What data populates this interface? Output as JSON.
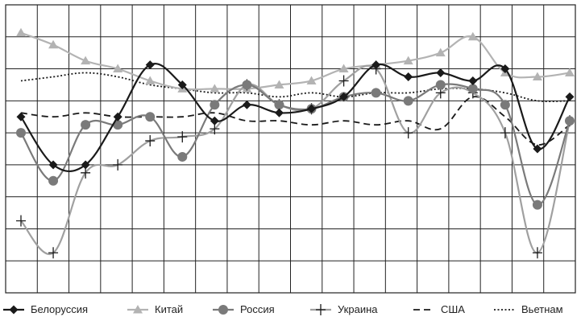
{
  "chart_data": {
    "type": "line",
    "title": "",
    "xlabel": "",
    "ylabel": "",
    "grid": true,
    "legend_position": "bottom",
    "x": [
      0,
      1,
      2,
      3,
      4,
      5,
      6,
      7,
      8,
      9,
      10,
      11,
      12,
      13,
      14,
      15,
      16,
      17
    ],
    "series": [
      {
        "name": "Белоруссия",
        "marker": "diamond",
        "line": "solid",
        "color": "#1a1a1a",
        "values": [
          74,
          62,
          62,
          74,
          87,
          82,
          73,
          77,
          75,
          76,
          79,
          87,
          84,
          85,
          83,
          86,
          66,
          79
        ]
      },
      {
        "name": "Китай",
        "marker": "triangle",
        "line": "solid",
        "color": "#b3b3b3",
        "values": [
          95,
          92,
          88,
          86,
          83,
          81,
          81,
          81,
          82,
          83,
          86,
          87,
          88,
          90,
          94,
          85,
          84,
          85
        ]
      },
      {
        "name": "Россия",
        "marker": "circle",
        "line": "solid",
        "color": "#7a7a7a",
        "values": [
          70,
          58,
          72,
          72,
          74,
          64,
          77,
          82,
          77,
          76,
          79,
          80,
          78,
          82,
          81,
          77,
          52,
          73
        ]
      },
      {
        "name": "Украина",
        "marker": "plus",
        "line": "solid",
        "color": "#a0a0a0",
        "values": [
          48,
          40,
          60,
          62,
          68,
          69,
          71,
          82,
          77,
          76,
          83,
          86,
          70,
          80,
          80,
          70,
          40,
          73
        ]
      },
      {
        "name": "США",
        "marker": "none",
        "line": "dashed",
        "color": "#1a1a1a",
        "values": [
          75,
          74,
          75,
          74,
          74,
          74,
          75,
          73,
          73,
          72,
          73,
          72,
          73,
          71,
          79,
          74,
          67,
          72
        ]
      },
      {
        "name": "Вьетнам",
        "marker": "none",
        "line": "dotted",
        "color": "#1a1a1a",
        "values": [
          83,
          84,
          85,
          84,
          82,
          81,
          80,
          80,
          79,
          80,
          79,
          80,
          80,
          81,
          81,
          80,
          78,
          78
        ]
      }
    ]
  }
}
